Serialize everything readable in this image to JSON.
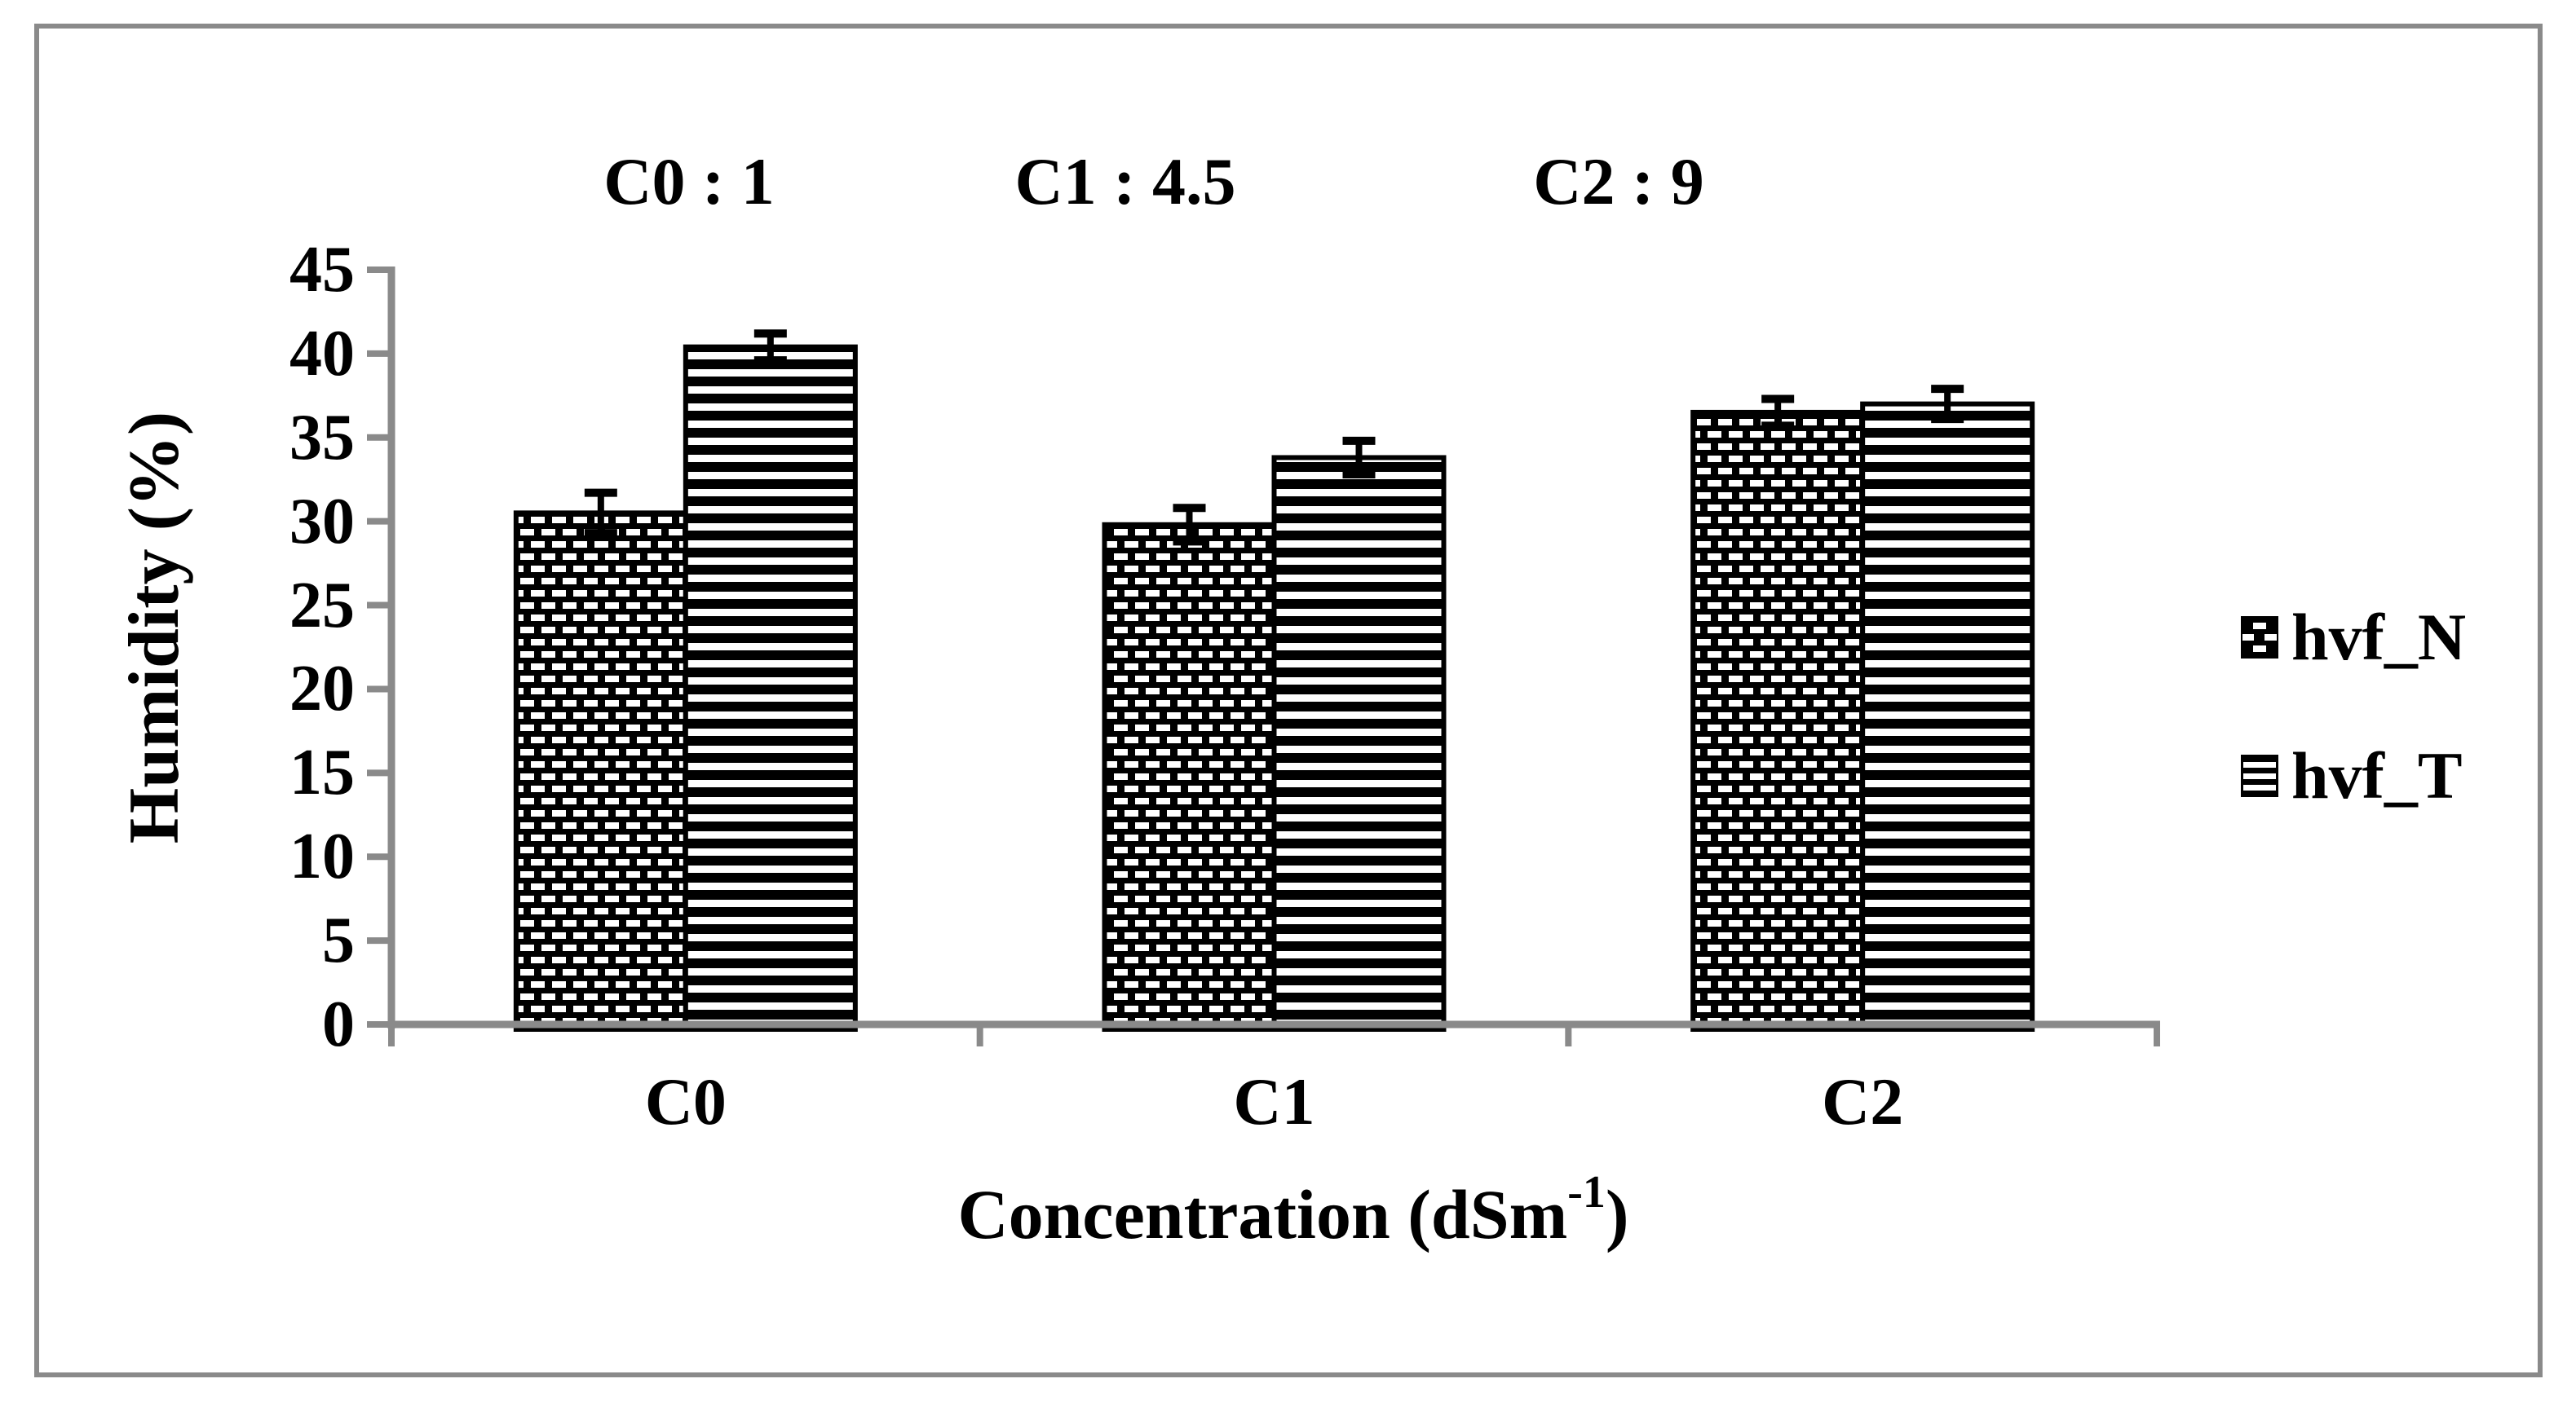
{
  "chart_data": {
    "type": "bar",
    "title": "",
    "categories": [
      "C0",
      "C1",
      "C2"
    ],
    "series": [
      {
        "name": "hvf_N",
        "pattern": "checker-dash",
        "values": [
          30.5,
          29.8,
          36.5
        ],
        "errors": [
          1.2,
          1.0,
          0.8
        ]
      },
      {
        "name": "hvf_T",
        "pattern": "horizontal-stripes",
        "values": [
          40.4,
          33.8,
          37.0
        ],
        "errors": [
          0.8,
          1.0,
          0.9
        ]
      }
    ],
    "ylabel": "Humidity (%)",
    "xlabel": {
      "prefix": "Concentration (dSm",
      "sup": "-1",
      "suffix": ")"
    },
    "ylim": [
      0,
      45
    ],
    "yticks": [
      0,
      5,
      10,
      15,
      20,
      25,
      30,
      35,
      40,
      45
    ],
    "annotations": [
      "C0 : 1",
      "C1 : 4.5",
      "C2 : 9"
    ],
    "annotation_x": [
      845,
      1380,
      1985
    ],
    "legend_position": "right",
    "grid": false
  },
  "colors": {
    "axis": "#8a8a8a",
    "frame": "#8a8a8a",
    "bar": "#000000",
    "text": "#000000",
    "background": "#ffffff"
  }
}
